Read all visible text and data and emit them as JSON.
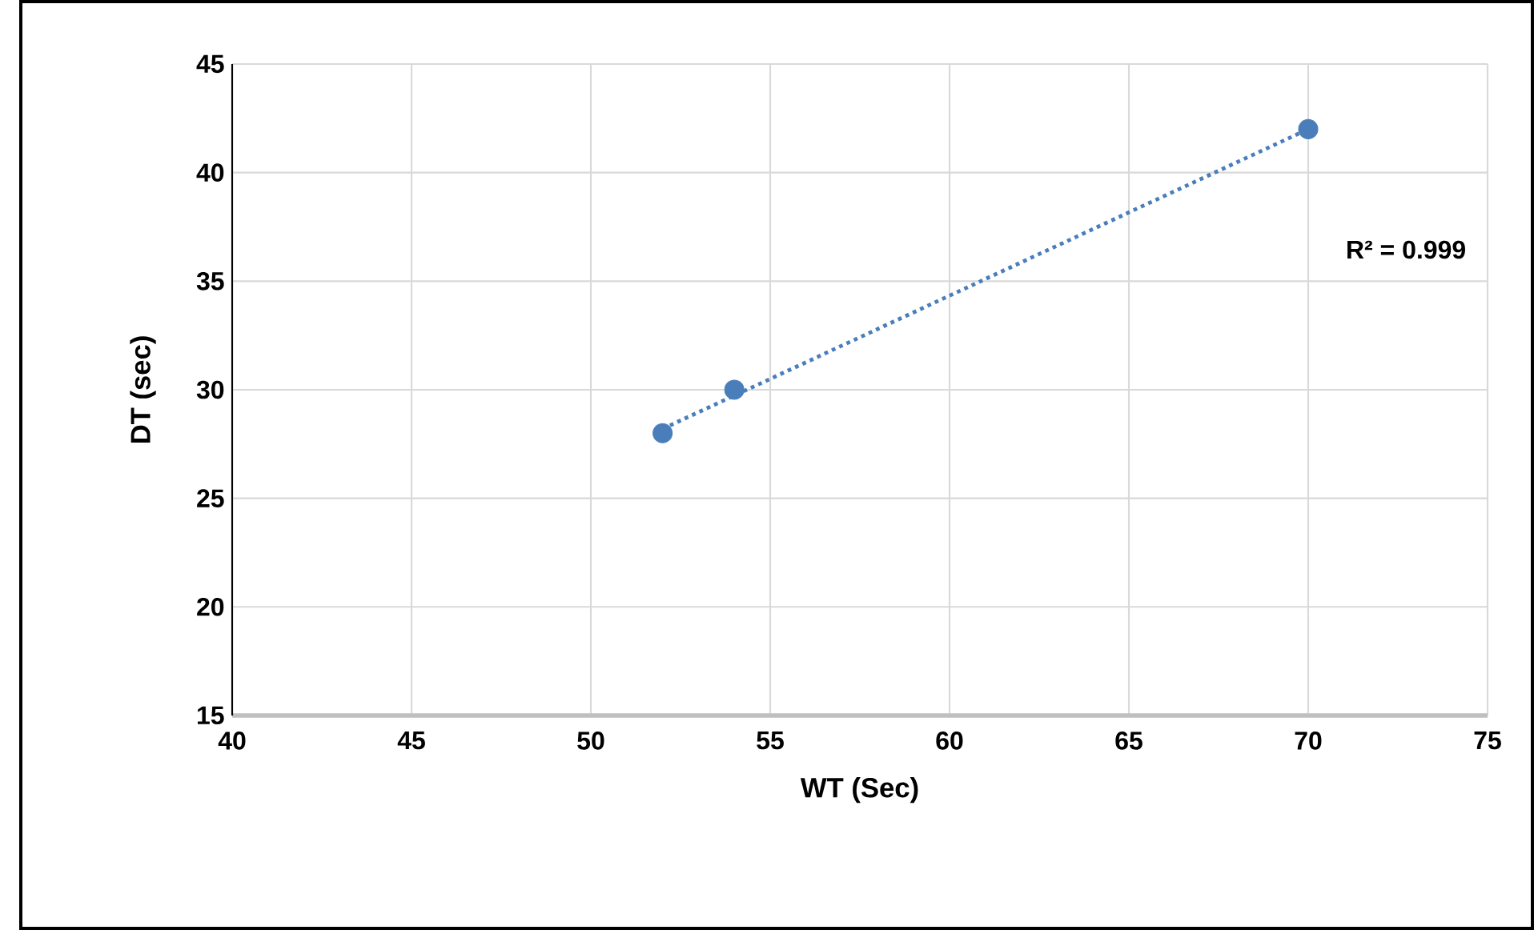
{
  "chart_data": {
    "type": "scatter",
    "xlabel": "WT (Sec)",
    "ylabel": "DT (sec)",
    "xlim": [
      40,
      75
    ],
    "xticks": [
      40,
      45,
      50,
      55,
      60,
      65,
      70,
      75
    ],
    "ylim": [
      15,
      45
    ],
    "yticks": [
      15,
      20,
      25,
      30,
      35,
      40,
      45
    ],
    "grid": true,
    "series": [
      {
        "type": "scatter",
        "color": "#4a7ebb",
        "x": [
          52,
          54,
          70
        ],
        "values": [
          28,
          30,
          42
        ]
      },
      {
        "type": "line",
        "color": "#4a7ebb",
        "line_style": "dotted",
        "x": [
          52,
          70
        ],
        "values": [
          28.2,
          42
        ]
      }
    ],
    "annotations": [
      "R² = 0.999"
    ]
  }
}
